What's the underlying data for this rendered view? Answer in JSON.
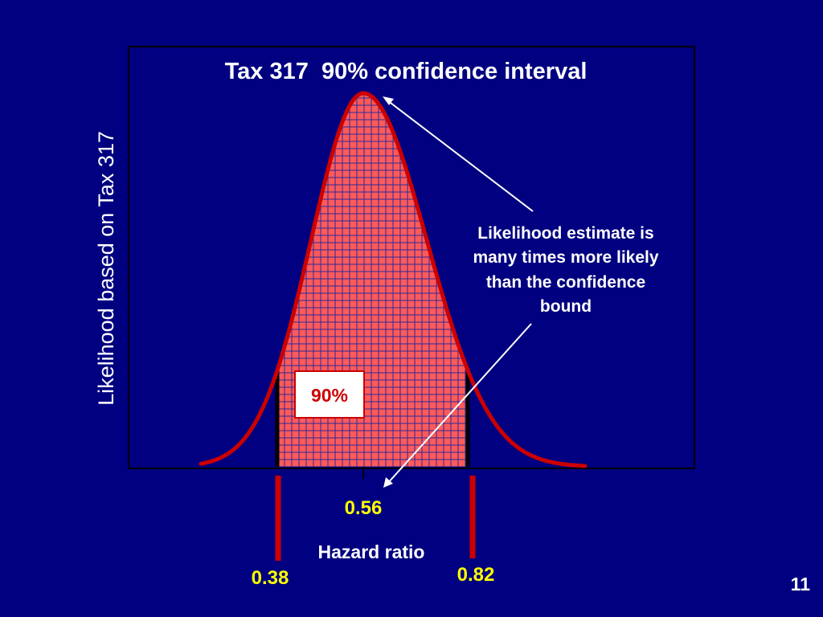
{
  "chart_data": {
    "type": "area",
    "title": "Tax 317  90% confidence interval",
    "ylabel": "Likelihood based on Tax 317",
    "xlabel": "Hazard ratio",
    "estimate": 0.56,
    "lower_bound": 0.38,
    "upper_bound": 0.82,
    "estimate_label": "0.56",
    "lower_label": "0.38",
    "upper_label": "0.82",
    "shaded_label": "90%",
    "annotation": "Likelihood estimate is many times more likely than the confidence bound",
    "annotation_lines": [
      "Likelihood estimate is",
      "many times more likely",
      "than the confidence",
      "bound"
    ],
    "grid": true,
    "colors": {
      "background": "#000080",
      "curve": "#cc0000",
      "fill": "#ff5a5a",
      "grid": "#2a2a9a",
      "bound_lines": "#cc0000",
      "text": "#ffffff",
      "values": "#ffff00"
    }
  },
  "slide": {
    "page_number": "11"
  }
}
